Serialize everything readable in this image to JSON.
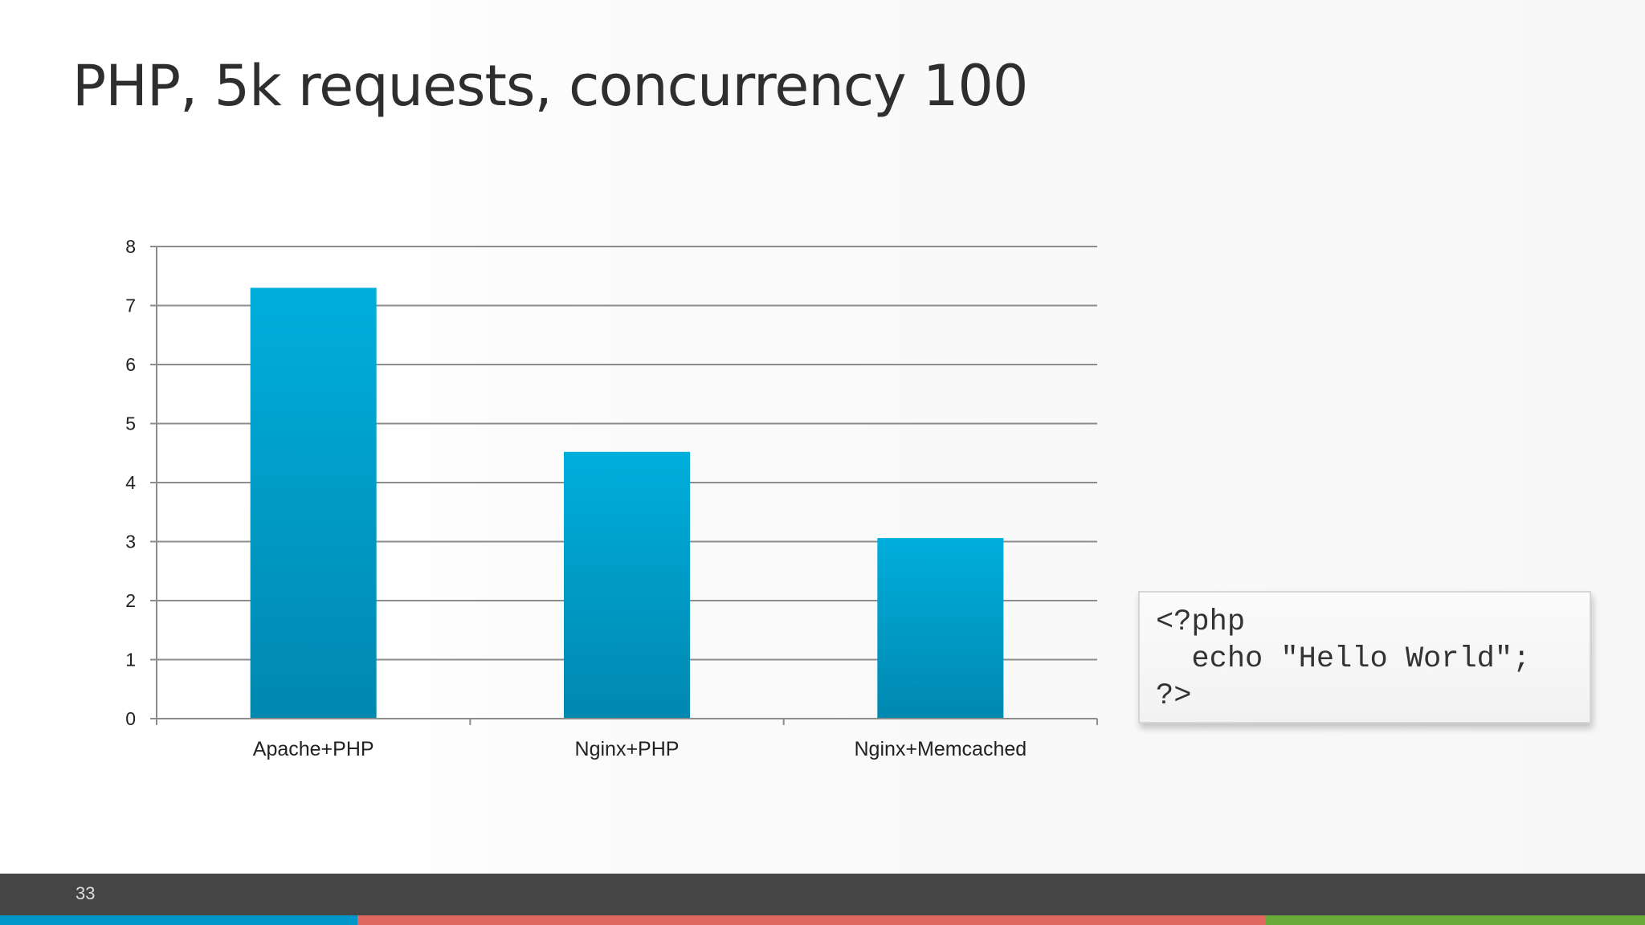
{
  "slide": {
    "title": "PHP, 5k requests, concurrency 100",
    "page_number": "33"
  },
  "code": {
    "lines": [
      "<?php",
      "  echo \"Hello World\";",
      "?>"
    ]
  },
  "footer": {
    "bar_color": "#454545",
    "stripes": [
      {
        "color": "#0096c8"
      },
      {
        "color": "#e0695f"
      },
      {
        "color": "#6aaa3a"
      }
    ]
  },
  "chart_data": {
    "type": "bar",
    "categories": [
      "Apache+PHP",
      "Nginx+PHP",
      "Nginx+Memcached"
    ],
    "values": [
      7.3,
      4.52,
      3.06
    ],
    "title": "",
    "xlabel": "",
    "ylabel": "",
    "ylim": [
      0,
      8
    ],
    "yticks": [
      0,
      1,
      2,
      3,
      4,
      5,
      6,
      7,
      8
    ],
    "grid": true,
    "legend": "none",
    "bar_color_top": "#00aedc",
    "bar_color_bottom": "#0088b0"
  }
}
